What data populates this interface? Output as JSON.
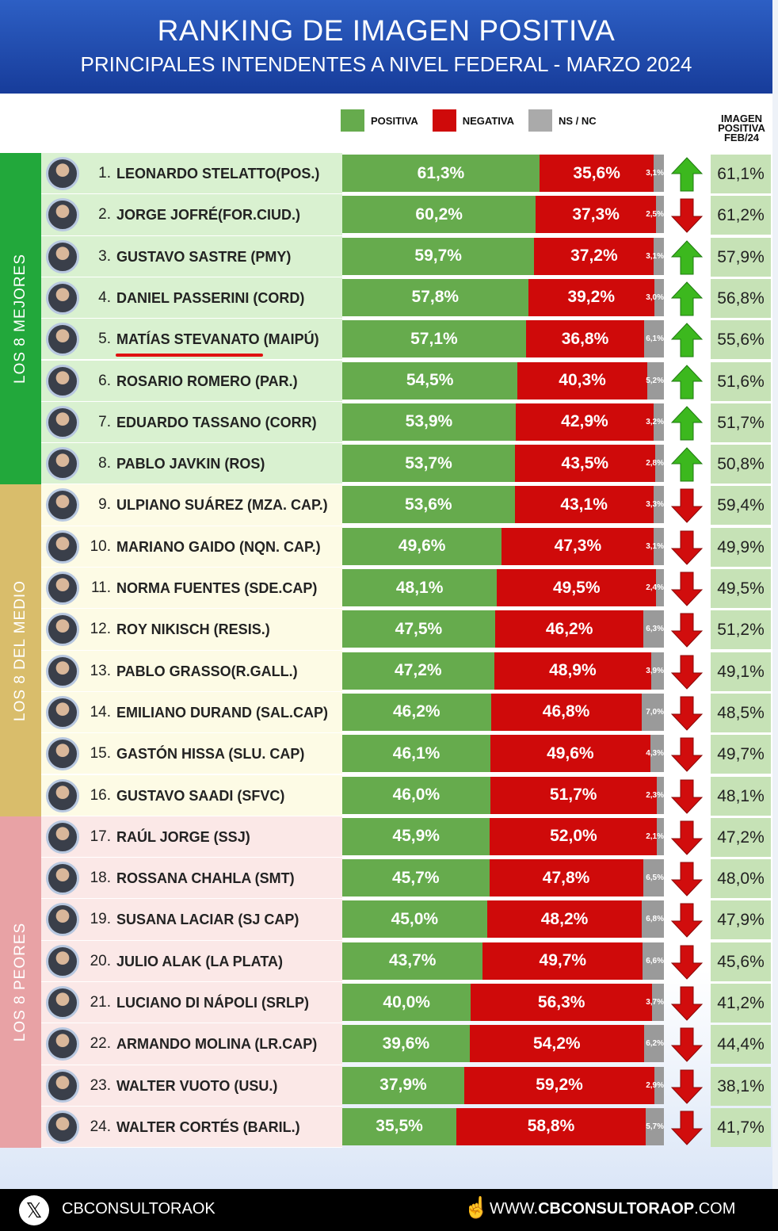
{
  "header": {
    "title": "RANKING DE IMAGEN POSITIVA",
    "subtitle": "PRINCIPALES INTENDENTES A NIVEL FEDERAL - MARZO 2024"
  },
  "legend": {
    "positiva": "POSITIVA",
    "negativa": "NEGATIVA",
    "nsnc": "NS / NC"
  },
  "colors": {
    "positiva": "#66ab4d",
    "negativa": "#cf0a0a",
    "nsnc": "#9a9a9a",
    "up": "#3cb81e",
    "down": "#d10d0d"
  },
  "feb_header": [
    "IMAGEN",
    "POSITIVA",
    "FEB/24"
  ],
  "groups": [
    {
      "label": "LOS 8 MEJORES",
      "color": "#22a83b",
      "row_bg": "#d9f1d0"
    },
    {
      "label": "LOS 8 DEL MEDIO",
      "color": "#d9bd6b",
      "row_bg": "#fdfbe5"
    },
    {
      "label": "LOS 8 PEORES",
      "color": "#e8a2a5",
      "row_bg": "#fbe8e7"
    }
  ],
  "chart_data": {
    "type": "bar",
    "stacked": true,
    "orientation": "horizontal",
    "series_names": [
      "POSITIVA",
      "NEGATIVA",
      "NS / NC"
    ],
    "rows": [
      {
        "rank": "1.",
        "name": "LEONARDO STELATTO(POS.)",
        "pos": "61,3%",
        "neg": "35,6%",
        "ns": "3,1%",
        "p": 61.3,
        "n": 35.6,
        "s": 3.1,
        "trend": "up",
        "feb": "61,1%"
      },
      {
        "rank": "2.",
        "name": "JORGE JOFRÉ(FOR.CIUD.)",
        "pos": "60,2%",
        "neg": "37,3%",
        "ns": "2,5%",
        "p": 60.2,
        "n": 37.3,
        "s": 2.5,
        "trend": "down",
        "feb": "61,2%"
      },
      {
        "rank": "3.",
        "name": "GUSTAVO SASTRE (PMY)",
        "pos": "59,7%",
        "neg": "37,2%",
        "ns": "3,1%",
        "p": 59.7,
        "n": 37.2,
        "s": 3.1,
        "trend": "up",
        "feb": "57,9%"
      },
      {
        "rank": "4.",
        "name": "DANIEL PASSERINI (CORD)",
        "pos": "57,8%",
        "neg": "39,2%",
        "ns": "3,0%",
        "p": 57.8,
        "n": 39.2,
        "s": 3.0,
        "trend": "up",
        "feb": "56,8%"
      },
      {
        "rank": "5.",
        "name": "MATÍAS STEVANATO (MAIPÚ)",
        "pos": "57,1%",
        "neg": "36,8%",
        "ns": "6,1%",
        "p": 57.1,
        "n": 36.8,
        "s": 6.1,
        "trend": "up",
        "feb": "55,6%"
      },
      {
        "rank": "6.",
        "name": "ROSARIO ROMERO (PAR.)",
        "pos": "54,5%",
        "neg": "40,3%",
        "ns": "5,2%",
        "p": 54.5,
        "n": 40.3,
        "s": 5.2,
        "trend": "up",
        "feb": "51,6%"
      },
      {
        "rank": "7.",
        "name": "EDUARDO TASSANO (CORR)",
        "pos": "53,9%",
        "neg": "42,9%",
        "ns": "3,2%",
        "p": 53.9,
        "n": 42.9,
        "s": 3.2,
        "trend": "up",
        "feb": "51,7%"
      },
      {
        "rank": "8.",
        "name": "PABLO JAVKIN (ROS)",
        "pos": "53,7%",
        "neg": "43,5%",
        "ns": "2,8%",
        "p": 53.7,
        "n": 43.5,
        "s": 2.8,
        "trend": "up",
        "feb": "50,8%"
      },
      {
        "rank": "9.",
        "name": "ULPIANO SUÁREZ (MZA. CAP.)",
        "pos": "53,6%",
        "neg": "43,1%",
        "ns": "3,3%",
        "p": 53.6,
        "n": 43.1,
        "s": 3.3,
        "trend": "down",
        "feb": "59,4%"
      },
      {
        "rank": "10.",
        "name": "MARIANO GAIDO (NQN. CAP.)",
        "pos": "49,6%",
        "neg": "47,3%",
        "ns": "3,1%",
        "p": 49.6,
        "n": 47.3,
        "s": 3.1,
        "trend": "down",
        "feb": "49,9%"
      },
      {
        "rank": "11.",
        "name": "NORMA FUENTES (SDE.CAP)",
        "pos": "48,1%",
        "neg": "49,5%",
        "ns": "2,4%",
        "p": 48.1,
        "n": 49.5,
        "s": 2.4,
        "trend": "down",
        "feb": "49,5%"
      },
      {
        "rank": "12.",
        "name": "ROY NIKISCH (RESIS.)",
        "pos": "47,5%",
        "neg": "46,2%",
        "ns": "6,3%",
        "p": 47.5,
        "n": 46.2,
        "s": 6.3,
        "trend": "down",
        "feb": "51,2%"
      },
      {
        "rank": "13.",
        "name": "PABLO GRASSO(R.GALL.)",
        "pos": "47,2%",
        "neg": "48,9%",
        "ns": "3,9%",
        "p": 47.2,
        "n": 48.9,
        "s": 3.9,
        "trend": "down",
        "feb": "49,1%"
      },
      {
        "rank": "14.",
        "name": "EMILIANO DURAND (SAL.CAP)",
        "pos": "46,2%",
        "neg": "46,8%",
        "ns": "7,0%",
        "p": 46.2,
        "n": 46.8,
        "s": 7.0,
        "trend": "down",
        "feb": "48,5%"
      },
      {
        "rank": "15.",
        "name": "GASTÓN HISSA (SLU. CAP)",
        "pos": "46,1%",
        "neg": "49,6%",
        "ns": "4,3%",
        "p": 46.1,
        "n": 49.6,
        "s": 4.3,
        "trend": "down",
        "feb": "49,7%"
      },
      {
        "rank": "16.",
        "name": "GUSTAVO SAADI (SFVC)",
        "pos": "46,0%",
        "neg": "51,7%",
        "ns": "2,3%",
        "p": 46.0,
        "n": 51.7,
        "s": 2.3,
        "trend": "down",
        "feb": "48,1%"
      },
      {
        "rank": "17.",
        "name": "RAÚL JORGE (SSJ)",
        "pos": "45,9%",
        "neg": "52,0%",
        "ns": "2,1%",
        "p": 45.9,
        "n": 52.0,
        "s": 2.1,
        "trend": "down",
        "feb": "47,2%"
      },
      {
        "rank": "18.",
        "name": "ROSSANA CHAHLA (SMT)",
        "pos": "45,7%",
        "neg": "47,8%",
        "ns": "6,5%",
        "p": 45.7,
        "n": 47.8,
        "s": 6.5,
        "trend": "down",
        "feb": "48,0%"
      },
      {
        "rank": "19.",
        "name": "SUSANA LACIAR (SJ CAP)",
        "pos": "45,0%",
        "neg": "48,2%",
        "ns": "6,8%",
        "p": 45.0,
        "n": 48.2,
        "s": 6.8,
        "trend": "down",
        "feb": "47,9%"
      },
      {
        "rank": "20.",
        "name": "JULIO ALAK (LA PLATA)",
        "pos": "43,7%",
        "neg": "49,7%",
        "ns": "6,6%",
        "p": 43.7,
        "n": 49.7,
        "s": 6.6,
        "trend": "down",
        "feb": "45,6%"
      },
      {
        "rank": "21.",
        "name": "LUCIANO DI NÁPOLI (SRLP)",
        "pos": "40,0%",
        "neg": "56,3%",
        "ns": "3,7%",
        "p": 40.0,
        "n": 56.3,
        "s": 3.7,
        "trend": "down",
        "feb": "41,2%"
      },
      {
        "rank": "22.",
        "name": "ARMANDO MOLINA (LR.CAP)",
        "pos": "39,6%",
        "neg": "54,2%",
        "ns": "6,2%",
        "p": 39.6,
        "n": 54.2,
        "s": 6.2,
        "trend": "down",
        "feb": "44,4%"
      },
      {
        "rank": "23.",
        "name": "WALTER VUOTO (USU.)",
        "pos": "37,9%",
        "neg": "59,2%",
        "ns": "2,9%",
        "p": 37.9,
        "n": 59.2,
        "s": 2.9,
        "trend": "down",
        "feb": "38,1%"
      },
      {
        "rank": "24.",
        "name": "WALTER CORTÉS (BARIL.)",
        "pos": "35,5%",
        "neg": "58,8%",
        "ns": "5,7%",
        "p": 35.5,
        "n": 58.8,
        "s": 5.7,
        "trend": "down",
        "feb": "41,7%"
      }
    ]
  },
  "footer": {
    "x_handle": "CBCONSULTORAOK",
    "site_prefix": "WWW.",
    "site_bold": "CBCONSULTORAOP",
    "site_suffix": ".COM"
  }
}
